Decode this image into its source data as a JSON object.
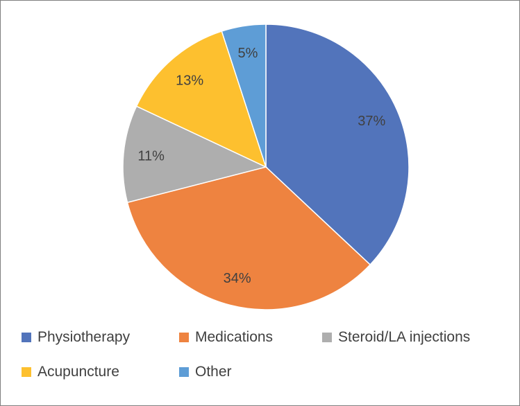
{
  "chart_data": {
    "type": "pie",
    "title": "",
    "start_angle_deg": 0,
    "direction": "clockwise",
    "legend_position": "bottom",
    "slices": [
      {
        "label": "Physiotherapy",
        "value": 37,
        "display": "37%",
        "color": "#5274BB"
      },
      {
        "label": "Medications",
        "value": 34,
        "display": "34%",
        "color": "#EE8340"
      },
      {
        "label": "Steroid/LA injections",
        "value": 11,
        "display": "11%",
        "color": "#AEAEAE"
      },
      {
        "label": "Acupuncture",
        "value": 13,
        "display": "13%",
        "color": "#FDC02F"
      },
      {
        "label": "Other",
        "value": 5,
        "display": "5%",
        "color": "#5E9DD6"
      }
    ]
  }
}
